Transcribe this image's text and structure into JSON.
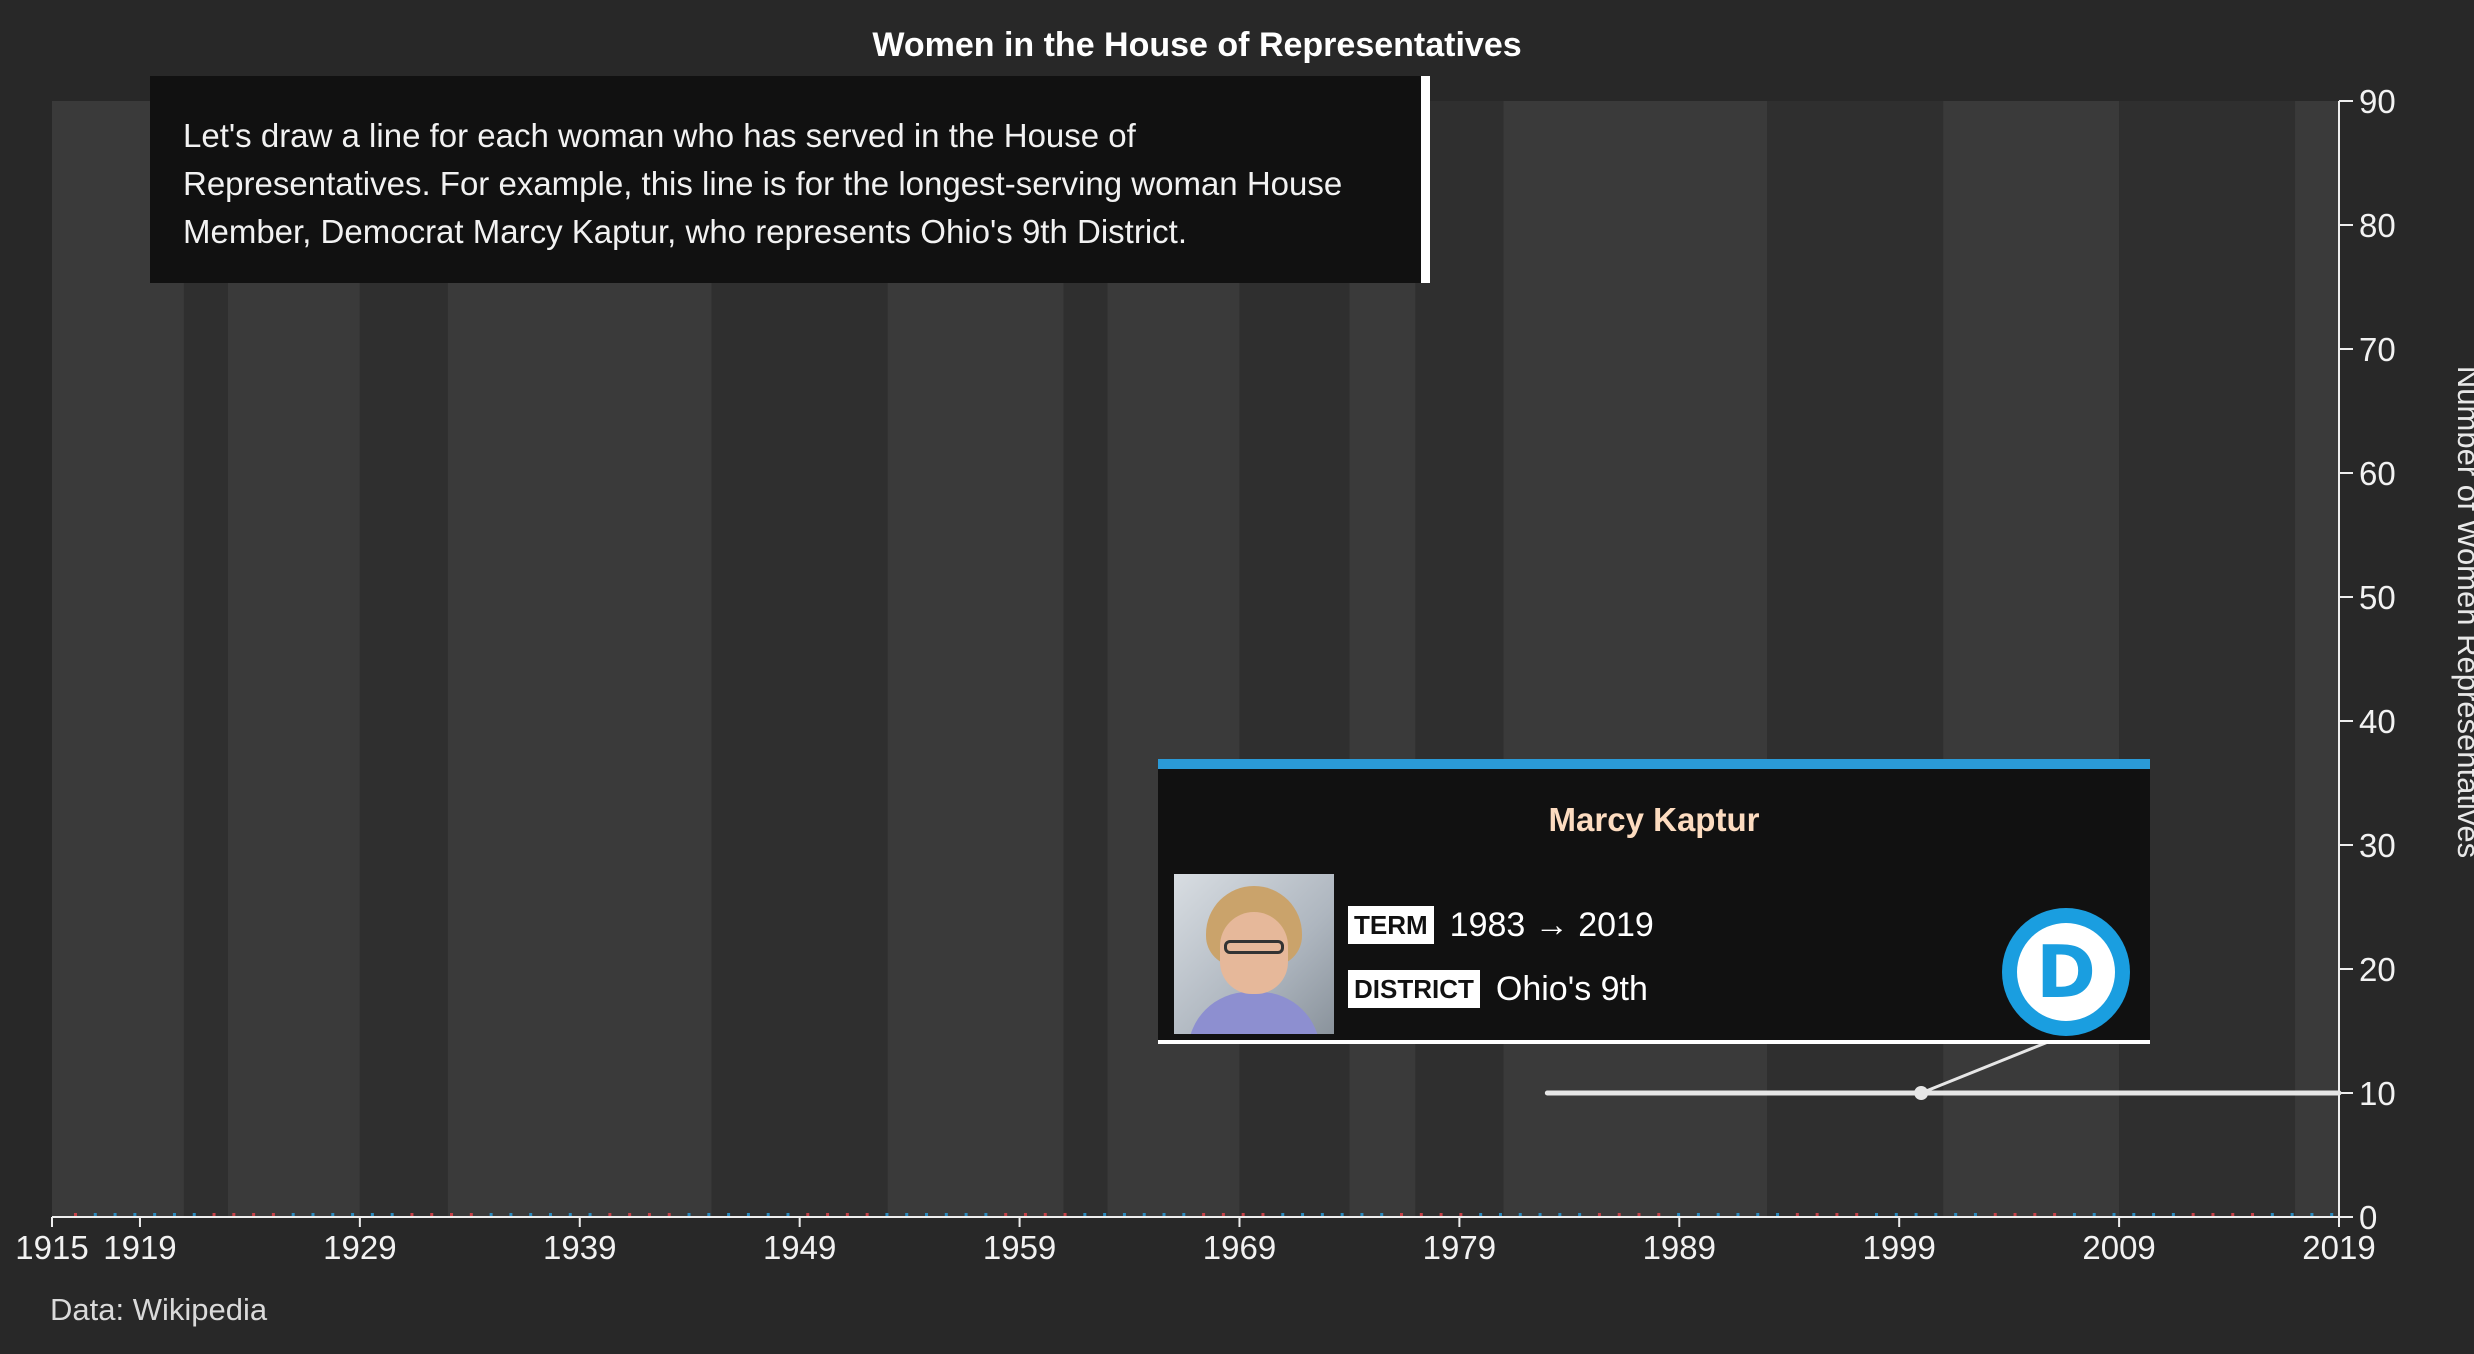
{
  "chart_data": {
    "type": "line",
    "title": "Women in the House of Representatives",
    "ylabel": "Number of Women Representatives",
    "xlabel": "",
    "xlim": [
      1915,
      2019
    ],
    "ylim": [
      0,
      90
    ],
    "x_ticks": [
      1915,
      1919,
      1929,
      1939,
      1949,
      1959,
      1969,
      1979,
      1989,
      1999,
      2009,
      2019
    ],
    "y_ticks": [
      0,
      10,
      20,
      30,
      40,
      50,
      60,
      70,
      80,
      90
    ],
    "y_axis_side": "right",
    "grid": false,
    "alternating_bands": [
      [
        1915,
        1921
      ],
      [
        1921,
        1923
      ],
      [
        1923,
        1929
      ],
      [
        1929,
        1933
      ],
      [
        1933,
        1945
      ],
      [
        1945,
        1953
      ],
      [
        1953,
        1961
      ],
      [
        1961,
        1963
      ],
      [
        1963,
        1969
      ],
      [
        1969,
        1974
      ],
      [
        1974,
        1977
      ],
      [
        1977,
        1981
      ],
      [
        1981,
        1993
      ],
      [
        1993,
        2001
      ],
      [
        2001,
        2009
      ],
      [
        2009,
        2017
      ],
      [
        2017,
        2019
      ]
    ],
    "series": [
      {
        "name": "Marcy Kaptur",
        "party": "Democrat",
        "x": [
          1983,
          2019
        ],
        "y": [
          10,
          10
        ],
        "highlight_point": [
          2000,
          10
        ]
      }
    ],
    "annotation": "Let's draw a line for each woman who has served in the House of Representatives. For example, this line is for the longest-serving woman House Member, Democrat Marcy Kaptur, who represents Ohio's 9th District.",
    "source": "Data: Wikipedia"
  },
  "tooltip": {
    "name": "Marcy Kaptur",
    "term_label": "TERM",
    "term_value": "1983 → 2019",
    "district_label": "DISTRICT",
    "district_value": "Ohio's 9th",
    "party_logo_letter": "D",
    "party_icon": "democratic-party-logo-icon"
  },
  "colors": {
    "background": "#282828",
    "band_light": "#3a3a3a",
    "band_dark": "#2f2f2f",
    "democrat": "#2a9ad7",
    "republican": "#e0444b",
    "highlight_line": "#e6e6e6",
    "tooltip_name": "#fddcc0"
  }
}
